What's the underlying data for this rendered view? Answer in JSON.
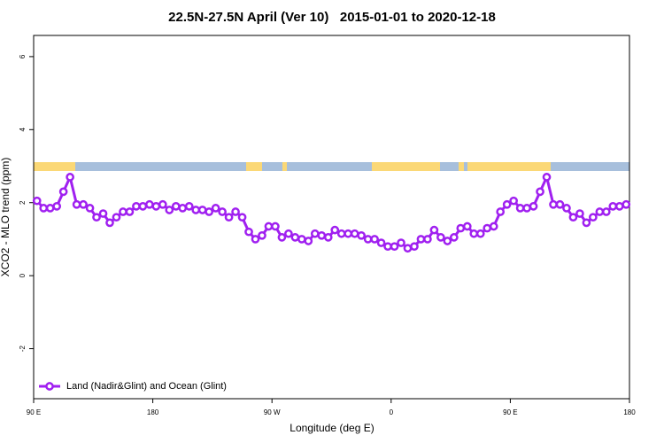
{
  "chart_data": {
    "type": "line",
    "title": "22.5N-27.5N April (Ver 10)   2015-01-01 to 2020-12-18",
    "xlabel": "Longitude (deg E)",
    "ylabel": "XCO2 - MLO trend (ppm)",
    "x": [
      92.5,
      97.5,
      102.5,
      107.5,
      112.5,
      117.5,
      122.5,
      127.5,
      132.5,
      137.5,
      142.5,
      147.5,
      152.5,
      157.5,
      162.5,
      167.5,
      172.5,
      177.5,
      182.5,
      187.5,
      192.5,
      197.5,
      202.5,
      207.5,
      212.5,
      217.5,
      222.5,
      227.5,
      232.5,
      237.5,
      242.5,
      247.5,
      252.5,
      257.5,
      262.5,
      267.5,
      272.5,
      277.5,
      282.5,
      287.5,
      292.5,
      297.5,
      302.5,
      307.5,
      312.5,
      317.5,
      322.5,
      327.5,
      332.5,
      337.5,
      342.5,
      347.5,
      352.5,
      357.5,
      362.5,
      367.5,
      372.5,
      377.5,
      382.5,
      387.5,
      392.5,
      397.5,
      402.5,
      407.5,
      412.5,
      417.5,
      422.5,
      427.5,
      432.5,
      437.5,
      442.5,
      447.5,
      452.5,
      457.5,
      462.5,
      467.5,
      472.5,
      477.5,
      482.5,
      487.5,
      492.5,
      497.5,
      502.5,
      507.5,
      512.5,
      517.5,
      522.5,
      527.5,
      532.5,
      537.5
    ],
    "series": [
      {
        "name": "Land (Nadir&Glint) and Ocean (Glint)",
        "color": "#a020f0",
        "values": [
          2.05,
          1.85,
          1.85,
          1.9,
          2.3,
          2.7,
          1.95,
          1.95,
          1.85,
          1.6,
          1.7,
          1.45,
          1.6,
          1.75,
          1.75,
          1.9,
          1.9,
          1.95,
          1.9,
          1.95,
          1.8,
          1.9,
          1.85,
          1.9,
          1.8,
          1.8,
          1.75,
          1.85,
          1.75,
          1.6,
          1.75,
          1.6,
          1.2,
          1.0,
          1.1,
          1.35,
          1.35,
          1.05,
          1.15,
          1.05,
          1.0,
          0.95,
          1.15,
          1.1,
          1.05,
          1.25,
          1.15,
          1.15,
          1.15,
          1.1,
          1.0,
          1.0,
          0.9,
          0.8,
          0.8,
          0.9,
          0.75,
          0.8,
          1.0,
          1.0,
          1.25,
          1.05,
          0.95,
          1.05,
          1.3,
          1.35,
          1.15,
          1.15,
          1.3,
          1.35,
          1.75,
          1.95,
          2.05,
          1.85,
          1.85,
          1.9,
          2.3,
          2.7,
          1.95,
          1.95,
          1.85,
          1.6,
          1.7,
          1.45,
          1.6,
          1.75,
          1.75,
          1.9,
          1.9,
          1.95
        ]
      }
    ],
    "xlim": [
      90,
      540
    ],
    "xticks": [
      {
        "value": 90,
        "label": "90 E"
      },
      180,
      {
        "value": 270,
        "label": "90 W"
      },
      {
        "value": 360,
        "label": "0"
      },
      {
        "value": 450,
        "label": "90 E"
      },
      {
        "value": 540,
        "label": "180"
      }
    ],
    "ylim": [
      -3.37,
      6.58
    ],
    "yticks": [
      -2,
      0,
      2,
      4,
      6
    ],
    "legend": "bottom-left"
  }
}
